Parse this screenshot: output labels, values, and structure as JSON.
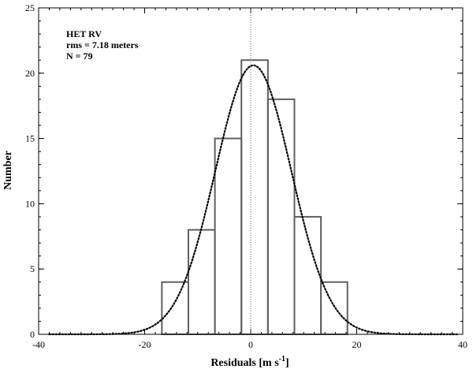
{
  "chart_data": {
    "type": "bar",
    "subtype": "histogram",
    "xlabel": "Residuals [m s",
    "xlabel_sup": "-1",
    "xlabel_end": "]",
    "ylabel": "Number",
    "xlim": [
      -40,
      40
    ],
    "ylim": [
      0,
      25
    ],
    "x_major_ticks": [
      -40,
      -20,
      0,
      20,
      40
    ],
    "x_minor_step": 2,
    "y_major_ticks": [
      0,
      5,
      10,
      15,
      20,
      25
    ],
    "y_minor_step": 1,
    "annotations": [
      "HET RV",
      "rms = 7.18 meters",
      "N = 79"
    ],
    "bins": [
      {
        "x0": -16.75,
        "x1": -11.75,
        "count": 4
      },
      {
        "x0": -11.75,
        "x1": -6.75,
        "count": 8
      },
      {
        "x0": -6.75,
        "x1": -1.75,
        "count": 15
      },
      {
        "x0": -1.75,
        "x1": 3.25,
        "count": 21
      },
      {
        "x0": 3.25,
        "x1": 8.25,
        "count": 18
      },
      {
        "x0": 8.25,
        "x1": 13.25,
        "count": 9
      },
      {
        "x0": 13.25,
        "x1": 18.25,
        "count": 4
      }
    ],
    "gaussian_fit": {
      "amplitude": 20.6,
      "mean": 0.5,
      "sigma": 7.18,
      "x_range": [
        -38,
        39
      ]
    },
    "zero_line_x": 0,
    "grid": false,
    "legend": "none"
  }
}
